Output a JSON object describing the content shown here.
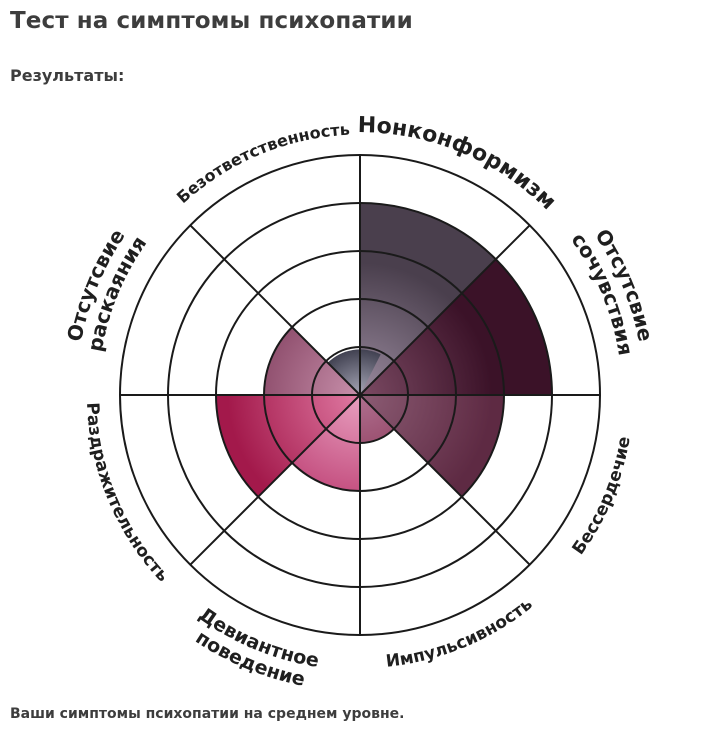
{
  "page": {
    "title": "Тест на симптомы психопатии",
    "results_heading": "Результаты:",
    "conclusion": "Ваши симптомы психопатии на среднем уровне."
  },
  "chart_data": {
    "type": "polar-area",
    "scale_max": 5,
    "rings": 5,
    "grid": true,
    "categories": [
      {
        "label": "Нонконформизм",
        "lines": [
          "Нонконформизм"
        ],
        "value": 4,
        "color_outer": "#4a3f4d",
        "color_inner": "#9a8a9e"
      },
      {
        "label": "Отсутсвие сочувствия",
        "lines": [
          "Отсутсвие",
          "сочувствия"
        ],
        "value": 4,
        "color_outer": "#3b1228",
        "color_inner": "#7b4a63"
      },
      {
        "label": "Бессердечие",
        "lines": [
          "Бессердечие"
        ],
        "value": 3,
        "color_outer": "#5e2a43",
        "color_inner": "#8c5c74"
      },
      {
        "label": "Импульсивность",
        "lines": [
          "Импульсивность"
        ],
        "value": 1,
        "color_outer": "#7a1f3f",
        "color_inner": "#b07090"
      },
      {
        "label": "Девиантное поведение",
        "lines": [
          "Девиантное",
          "поведение"
        ],
        "value": 2,
        "color_outer": "#b9356b",
        "color_inner": "#e8a0c0"
      },
      {
        "label": "Раздражительность",
        "lines": [
          "Раздражительность"
        ],
        "value": 3,
        "color_outer": "#a3194b",
        "color_inner": "#e07aa3"
      },
      {
        "label": "Отсутсвие раскаяния",
        "lines": [
          "Отсутсвие",
          "раскаяния"
        ],
        "value": 2,
        "color_outer": "#7d3a5a",
        "color_inner": "#c890ab"
      },
      {
        "label": "Безответственность",
        "lines": [
          "Безответственность"
        ],
        "value": 0,
        "color_outer": "#555566",
        "color_inner": "#9a9aaa"
      }
    ],
    "center": {
      "color_outer": "#3c3c4c",
      "color_inner": "#a8a8b8"
    }
  }
}
